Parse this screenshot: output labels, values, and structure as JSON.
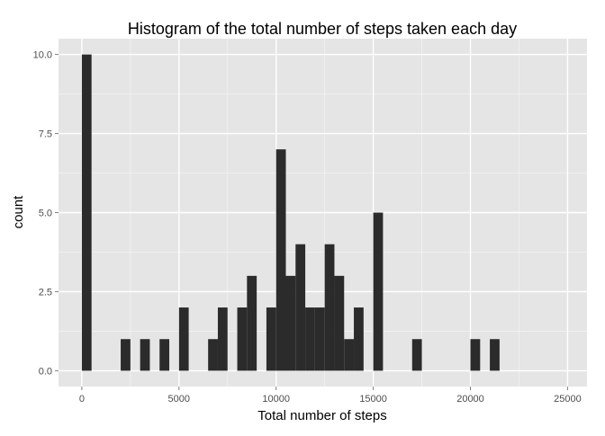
{
  "chart_data": {
    "type": "bar",
    "subtype": "histogram",
    "title": "Histogram of the total number of steps taken each day",
    "xlabel": "Total number of steps",
    "ylabel": "count",
    "xlim": [
      -1200,
      26000
    ],
    "ylim": [
      -0.5,
      10.5
    ],
    "x_ticks": [
      0,
      5000,
      10000,
      15000,
      20000,
      25000
    ],
    "x_tick_labels": [
      "0",
      "5000",
      "10000",
      "15000",
      "20000",
      "25000"
    ],
    "y_ticks": [
      0,
      2.5,
      5,
      7.5,
      10
    ],
    "y_tick_labels": [
      "0.0",
      "2.5",
      "5.0",
      "7.5",
      "10.0"
    ],
    "bin_width": 500,
    "bins": [
      {
        "start": 0,
        "count": 10
      },
      {
        "start": 2000,
        "count": 1
      },
      {
        "start": 3000,
        "count": 1
      },
      {
        "start": 4000,
        "count": 1
      },
      {
        "start": 5000,
        "count": 2
      },
      {
        "start": 6500,
        "count": 1
      },
      {
        "start": 7000,
        "count": 2
      },
      {
        "start": 8000,
        "count": 2
      },
      {
        "start": 8500,
        "count": 3
      },
      {
        "start": 9500,
        "count": 2
      },
      {
        "start": 10000,
        "count": 7
      },
      {
        "start": 10500,
        "count": 3
      },
      {
        "start": 11000,
        "count": 4
      },
      {
        "start": 11500,
        "count": 2
      },
      {
        "start": 12000,
        "count": 2
      },
      {
        "start": 12500,
        "count": 4
      },
      {
        "start": 13000,
        "count": 3
      },
      {
        "start": 13500,
        "count": 1
      },
      {
        "start": 14000,
        "count": 2
      },
      {
        "start": 15000,
        "count": 5
      },
      {
        "start": 17000,
        "count": 1
      },
      {
        "start": 20000,
        "count": 1
      },
      {
        "start": 21000,
        "count": 1
      }
    ],
    "grid": true,
    "legend": "none",
    "colors": {
      "panel_background": "#e5e5e5",
      "grid_major": "#ffffff",
      "grid_minor": "#f2f2f2",
      "bar_fill": "#2b2b2b",
      "tick_text": "#4d4d4d",
      "tick_mark": "#7f7f7f"
    }
  }
}
